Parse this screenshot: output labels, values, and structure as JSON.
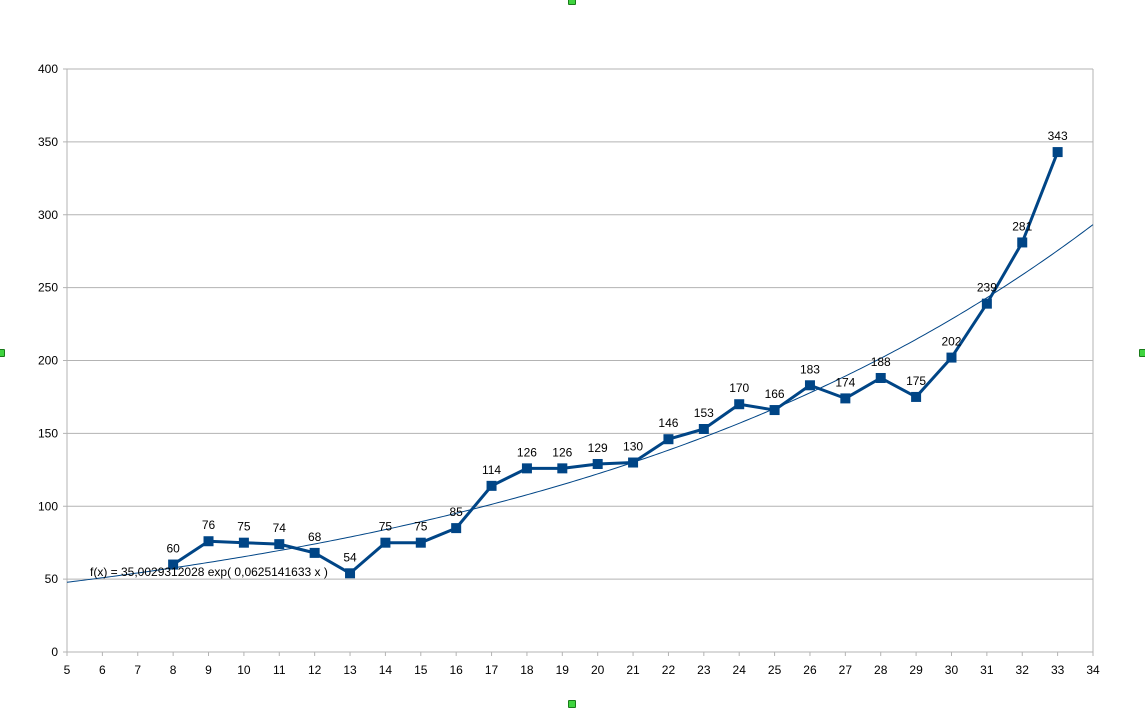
{
  "chart_data": {
    "type": "line",
    "title": "",
    "xlabel": "",
    "ylabel": "",
    "xlim": [
      5,
      34
    ],
    "ylim": [
      0,
      400
    ],
    "x_ticks": [
      "5",
      "6",
      "7",
      "8",
      "9",
      "10",
      "11",
      "12",
      "13",
      "14",
      "15",
      "16",
      "17",
      "18",
      "19",
      "20",
      "21",
      "22",
      "23",
      "24",
      "25",
      "26",
      "27",
      "28",
      "29",
      "30",
      "31",
      "32",
      "33",
      "34"
    ],
    "y_ticks": [
      "0",
      "50",
      "100",
      "150",
      "200",
      "250",
      "300",
      "350",
      "400"
    ],
    "grid": "horizontal",
    "legend": "none",
    "series": [
      {
        "x": [
          8,
          9,
          10,
          11,
          12,
          13,
          14,
          15,
          16,
          17,
          18,
          19,
          20,
          21,
          22,
          23,
          24,
          25,
          26,
          27,
          28,
          29,
          30,
          31,
          32,
          33
        ],
        "values": [
          60,
          76,
          75,
          74,
          68,
          54,
          75,
          75,
          85,
          114,
          126,
          126,
          129,
          130,
          146,
          153,
          170,
          166,
          183,
          174,
          188,
          175,
          202,
          239,
          281,
          343
        ],
        "data_labels": [
          "60",
          "76",
          "75",
          "74",
          "68",
          "54",
          "75",
          "75",
          "85",
          "114",
          "126",
          "126",
          "129",
          "130",
          "146",
          "153",
          "170",
          "166",
          "183",
          "174",
          "188",
          "175",
          "202",
          "239",
          "281",
          "343"
        ],
        "color": "#004586",
        "marker": "square"
      }
    ],
    "trendline": {
      "type": "exponential",
      "a": 35.0029312028,
      "b": 0.0625141633,
      "color": "#004586",
      "equation_label": "f(x) = 35,0029312028 exp( 0,0625141633 x )"
    }
  }
}
